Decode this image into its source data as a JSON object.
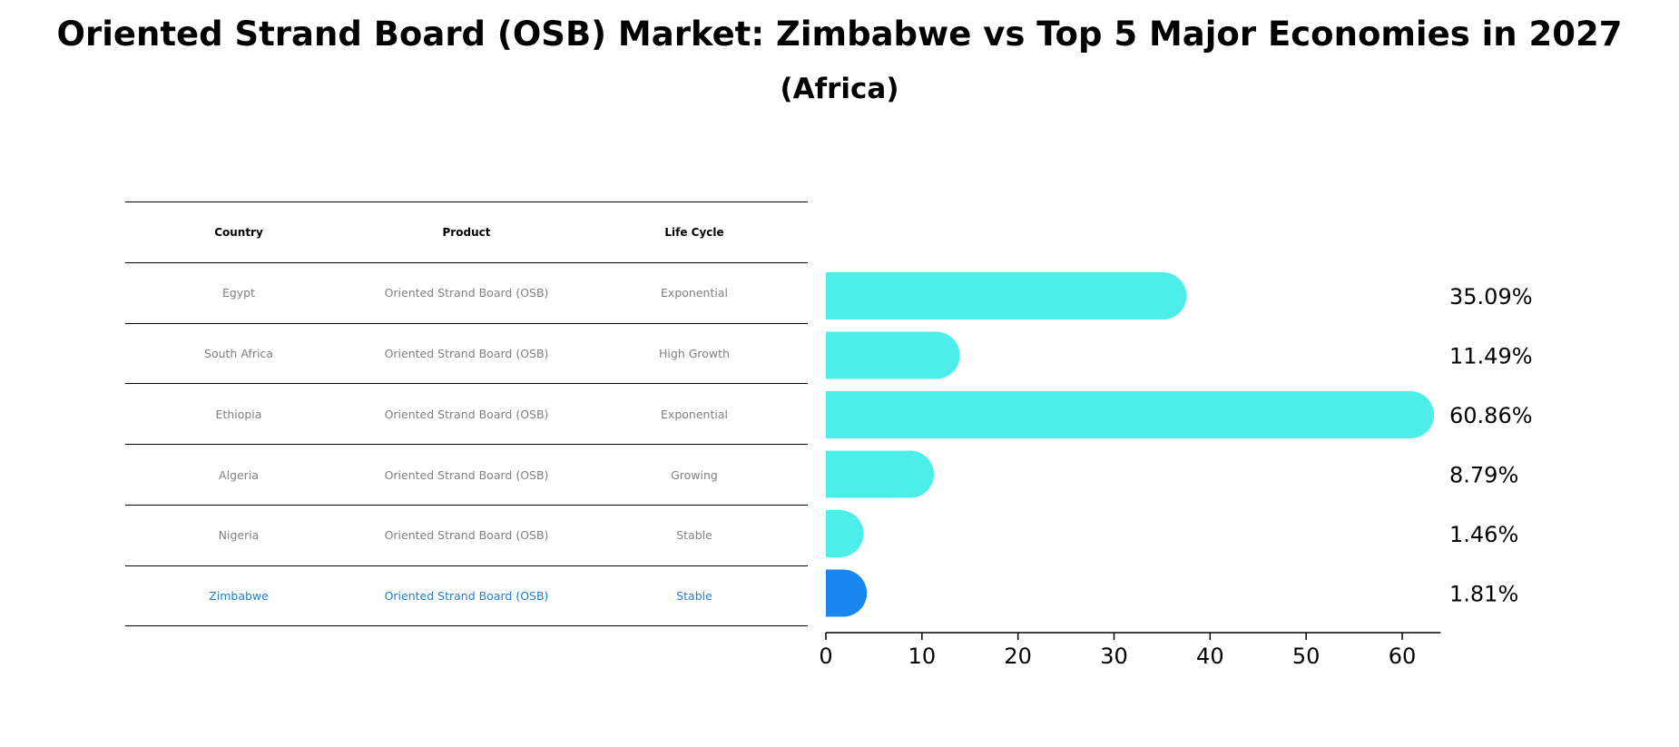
{
  "title": "Oriented Strand Board (OSB) Market: Zimbabwe vs Top 5 Major Economies in 2027",
  "subtitle": "(Africa)",
  "table": {
    "headers": [
      "Country",
      "Product",
      "Life Cycle"
    ],
    "rows": [
      {
        "country": "Egypt",
        "product": "Oriented Strand Board (OSB)",
        "life_cycle": "Exponential"
      },
      {
        "country": "South Africa",
        "product": "Oriented Strand Board (OSB)",
        "life_cycle": "High Growth"
      },
      {
        "country": "Ethiopia",
        "product": "Oriented Strand Board (OSB)",
        "life_cycle": "Exponential"
      },
      {
        "country": "Algeria",
        "product": "Oriented Strand Board (OSB)",
        "life_cycle": "Growing"
      },
      {
        "country": "Nigeria",
        "product": "Oriented Strand Board (OSB)",
        "life_cycle": "Stable"
      },
      {
        "country": "Zimbabwe",
        "product": "Oriented Strand Board (OSB)",
        "life_cycle": "Stable"
      }
    ]
  },
  "chart_data": {
    "type": "bar",
    "orientation": "horizontal",
    "title": "Oriented Strand Board (OSB) Market: Zimbabwe vs Top 5 Major Economies in 2027",
    "subtitle": "(Africa)",
    "categories": [
      "Egypt",
      "South Africa",
      "Ethiopia",
      "Algeria",
      "Nigeria",
      "Zimbabwe"
    ],
    "values": [
      35.09,
      11.49,
      60.86,
      8.79,
      1.46,
      1.81
    ],
    "value_labels": [
      "35.09%",
      "11.49%",
      "60.86%",
      "8.79%",
      "1.46%",
      "1.81%"
    ],
    "highlight_category": "Zimbabwe",
    "xlim": [
      0,
      64
    ],
    "xticks": [
      0,
      10,
      20,
      30,
      40,
      50,
      60
    ],
    "xlabel": "",
    "ylabel": "",
    "grid": false,
    "colors": {
      "default": "#4deeea",
      "highlight": "#1a86f0"
    }
  }
}
